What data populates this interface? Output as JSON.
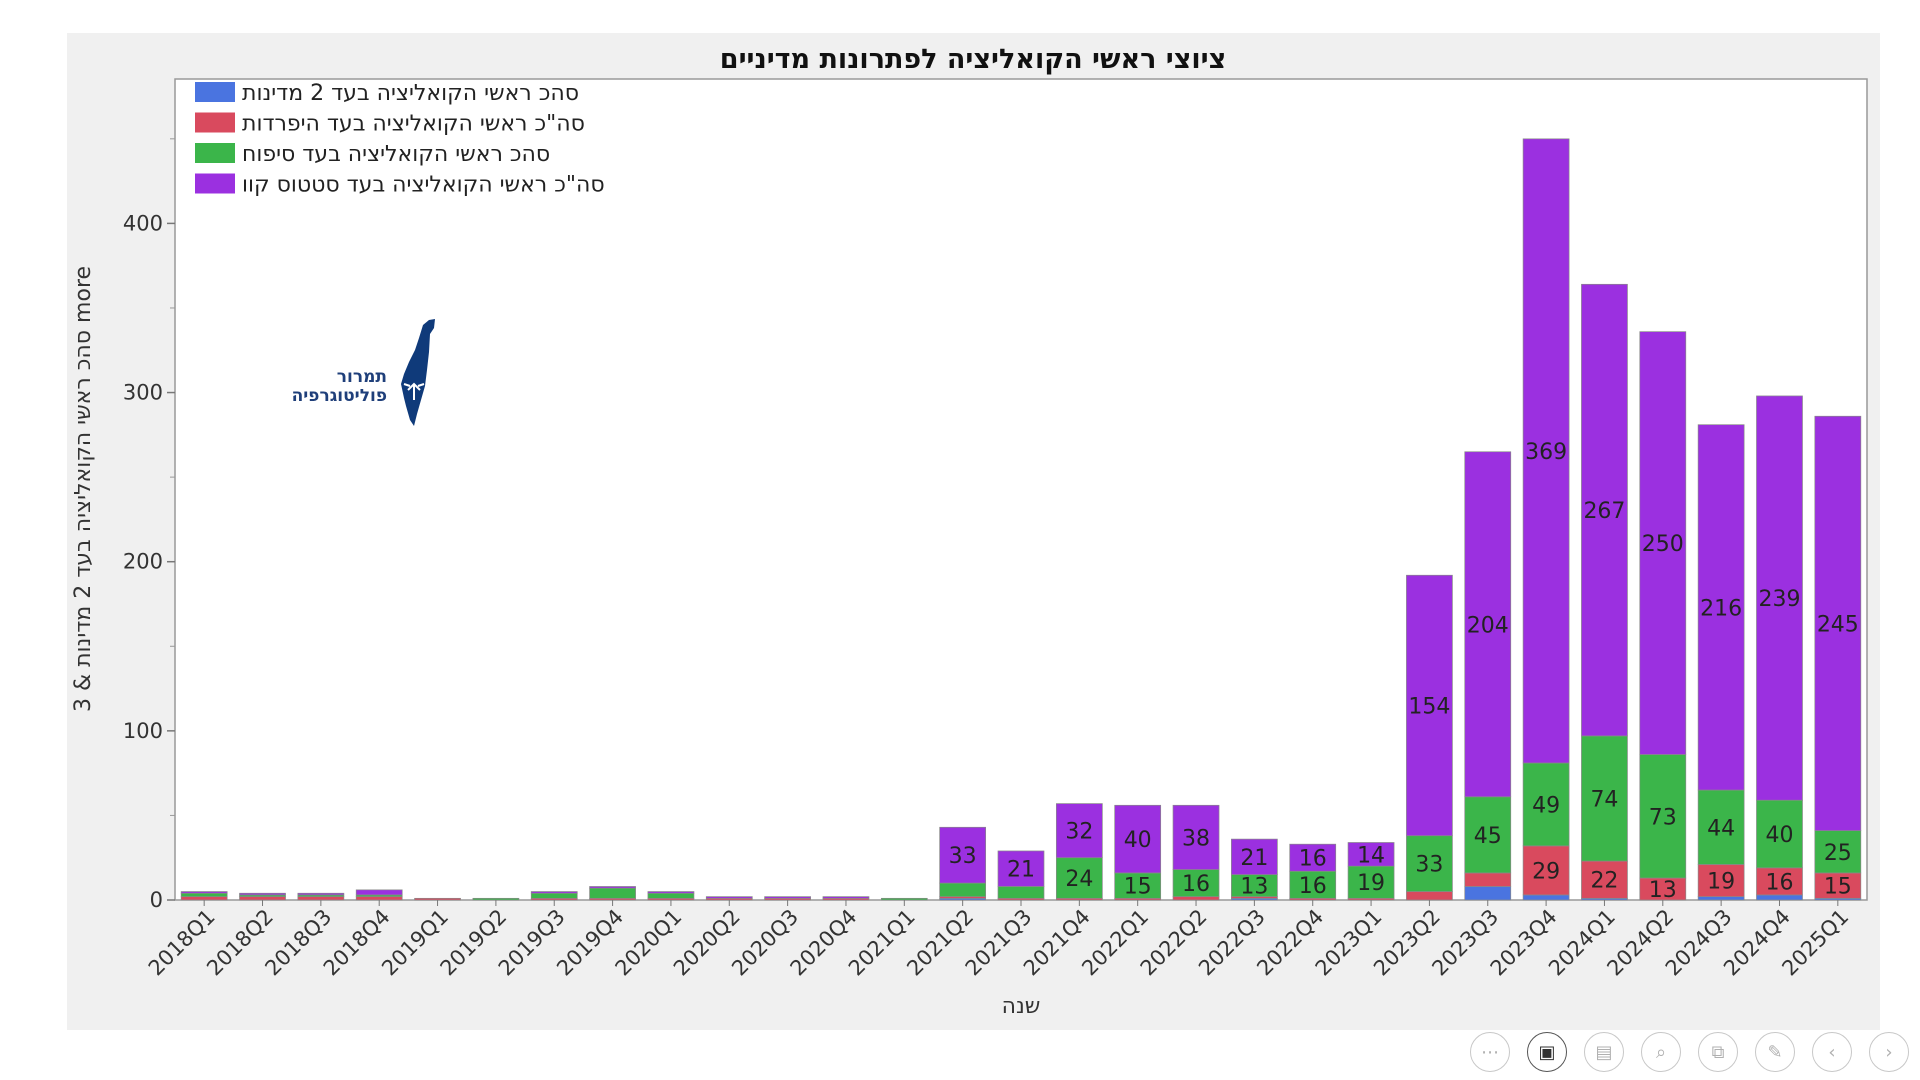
{
  "chart_data": {
    "type": "bar",
    "stacked": true,
    "title": "ציוצי ראשי הקואליציה לפתרונות מדיניים",
    "xlabel": "שנה",
    "ylabel": "סהכ ראשי הקואליציה בעד 2 מדינות & 3 more",
    "ylim": [
      0,
      470
    ],
    "yticks": [
      0,
      100,
      200,
      300,
      400
    ],
    "legend_position": "top-left",
    "categories": [
      "2018Q1",
      "2018Q2",
      "2018Q3",
      "2018Q4",
      "2019Q1",
      "2019Q2",
      "2019Q3",
      "2019Q4",
      "2020Q1",
      "2020Q2",
      "2020Q3",
      "2020Q4",
      "2021Q1",
      "2021Q2",
      "2021Q3",
      "2021Q4",
      "2022Q1",
      "2022Q2",
      "2022Q3",
      "2022Q4",
      "2023Q1",
      "2023Q2",
      "2023Q3",
      "2023Q4",
      "2024Q1",
      "2024Q2",
      "2024Q3",
      "2024Q4",
      "2025Q1"
    ],
    "series": [
      {
        "name": "סהכ ראשי הקואליציה בעד 2 מדינות",
        "color": "#4a74e0",
        "values": [
          0,
          0,
          0,
          0,
          0,
          0,
          0,
          0,
          0,
          0,
          0,
          0,
          0,
          1,
          0,
          0,
          0,
          0,
          1,
          0,
          0,
          0,
          8,
          3,
          1,
          0,
          2,
          3,
          1
        ]
      },
      {
        "name": "סה\"כ ראשי הקואליציה בעד היפרדות",
        "color": "#d94a5e",
        "values": [
          2,
          2,
          2,
          2,
          1,
          0,
          1,
          1,
          1,
          1,
          1,
          1,
          0,
          1,
          1,
          1,
          1,
          2,
          1,
          1,
          1,
          5,
          8,
          29,
          22,
          13,
          19,
          16,
          15
        ]
      },
      {
        "name": "סהכ ראשי הקואליציה בעד סיפוח",
        "color": "#3bb54a",
        "values": [
          2,
          1,
          1,
          1,
          0,
          1,
          3,
          6,
          3,
          0,
          0,
          0,
          1,
          8,
          7,
          24,
          15,
          16,
          13,
          16,
          19,
          33,
          45,
          49,
          74,
          73,
          44,
          40,
          25
        ]
      },
      {
        "name": "סה\"כ ראשי הקואליציה בעד סטטוס קוו",
        "color": "#9b30e0",
        "values": [
          1,
          1,
          1,
          3,
          0,
          0,
          1,
          1,
          1,
          1,
          1,
          1,
          0,
          33,
          21,
          32,
          40,
          38,
          21,
          16,
          14,
          154,
          204,
          369,
          267,
          250,
          216,
          239,
          245
        ]
      }
    ],
    "data_labels": [
      {
        "category": "2021Q2",
        "series": 3,
        "text": "33"
      },
      {
        "category": "2021Q3",
        "series": 3,
        "text": "21"
      },
      {
        "category": "2021Q4",
        "series": 2,
        "text": "24"
      },
      {
        "category": "2021Q4",
        "series": 3,
        "text": "32"
      },
      {
        "category": "2022Q1",
        "series": 2,
        "text": "15"
      },
      {
        "category": "2022Q1",
        "series": 3,
        "text": "40"
      },
      {
        "category": "2022Q2",
        "series": 2,
        "text": "16"
      },
      {
        "category": "2022Q2",
        "series": 3,
        "text": "38"
      },
      {
        "category": "2022Q3",
        "series": 2,
        "text": "13"
      },
      {
        "category": "2022Q3",
        "series": 3,
        "text": "21"
      },
      {
        "category": "2022Q4",
        "series": 2,
        "text": "16"
      },
      {
        "category": "2022Q4",
        "series": 3,
        "text": "16"
      },
      {
        "category": "2023Q1",
        "series": 2,
        "text": "19"
      },
      {
        "category": "2023Q1",
        "series": 3,
        "text": "14"
      },
      {
        "category": "2023Q2",
        "series": 2,
        "text": "33"
      },
      {
        "category": "2023Q2",
        "series": 3,
        "text": "154"
      },
      {
        "category": "2023Q3",
        "series": 2,
        "text": "45"
      },
      {
        "category": "2023Q3",
        "series": 3,
        "text": "204"
      },
      {
        "category": "2023Q4",
        "series": 1,
        "text": "29"
      },
      {
        "category": "2023Q4",
        "series": 2,
        "text": "49"
      },
      {
        "category": "2023Q4",
        "series": 3,
        "text": "369"
      },
      {
        "category": "2024Q1",
        "series": 1,
        "text": "22"
      },
      {
        "category": "2024Q1",
        "series": 2,
        "text": "74"
      },
      {
        "category": "2024Q1",
        "series": 3,
        "text": "267"
      },
      {
        "category": "2024Q2",
        "series": 1,
        "text": "13"
      },
      {
        "category": "2024Q2",
        "series": 2,
        "text": "73"
      },
      {
        "category": "2024Q2",
        "series": 3,
        "text": "250"
      },
      {
        "category": "2024Q3",
        "series": 1,
        "text": "19"
      },
      {
        "category": "2024Q3",
        "series": 2,
        "text": "44"
      },
      {
        "category": "2024Q3",
        "series": 3,
        "text": "216"
      },
      {
        "category": "2024Q4",
        "series": 1,
        "text": "16"
      },
      {
        "category": "2024Q4",
        "series": 2,
        "text": "40"
      },
      {
        "category": "2024Q4",
        "series": 3,
        "text": "239"
      },
      {
        "category": "2025Q1",
        "series": 1,
        "text": "15"
      },
      {
        "category": "2025Q1",
        "series": 2,
        "text": "25"
      },
      {
        "category": "2025Q1",
        "series": 3,
        "text": "245"
      }
    ]
  },
  "logo": {
    "line1": "תמרור",
    "line2": "פוליטוגרפיה",
    "color": "#0f3a7a"
  },
  "player_controls": [
    {
      "icon": "more-icon",
      "glyph": "⋯"
    },
    {
      "icon": "video-icon",
      "glyph": "▣"
    },
    {
      "icon": "subtitles-icon",
      "glyph": "▤"
    },
    {
      "icon": "zoom-icon",
      "glyph": "⌕"
    },
    {
      "icon": "slides-icon",
      "glyph": "⧉"
    },
    {
      "icon": "pen-icon",
      "glyph": "✎"
    },
    {
      "icon": "previous-icon",
      "glyph": "‹"
    },
    {
      "icon": "next-icon",
      "glyph": "›"
    }
  ]
}
